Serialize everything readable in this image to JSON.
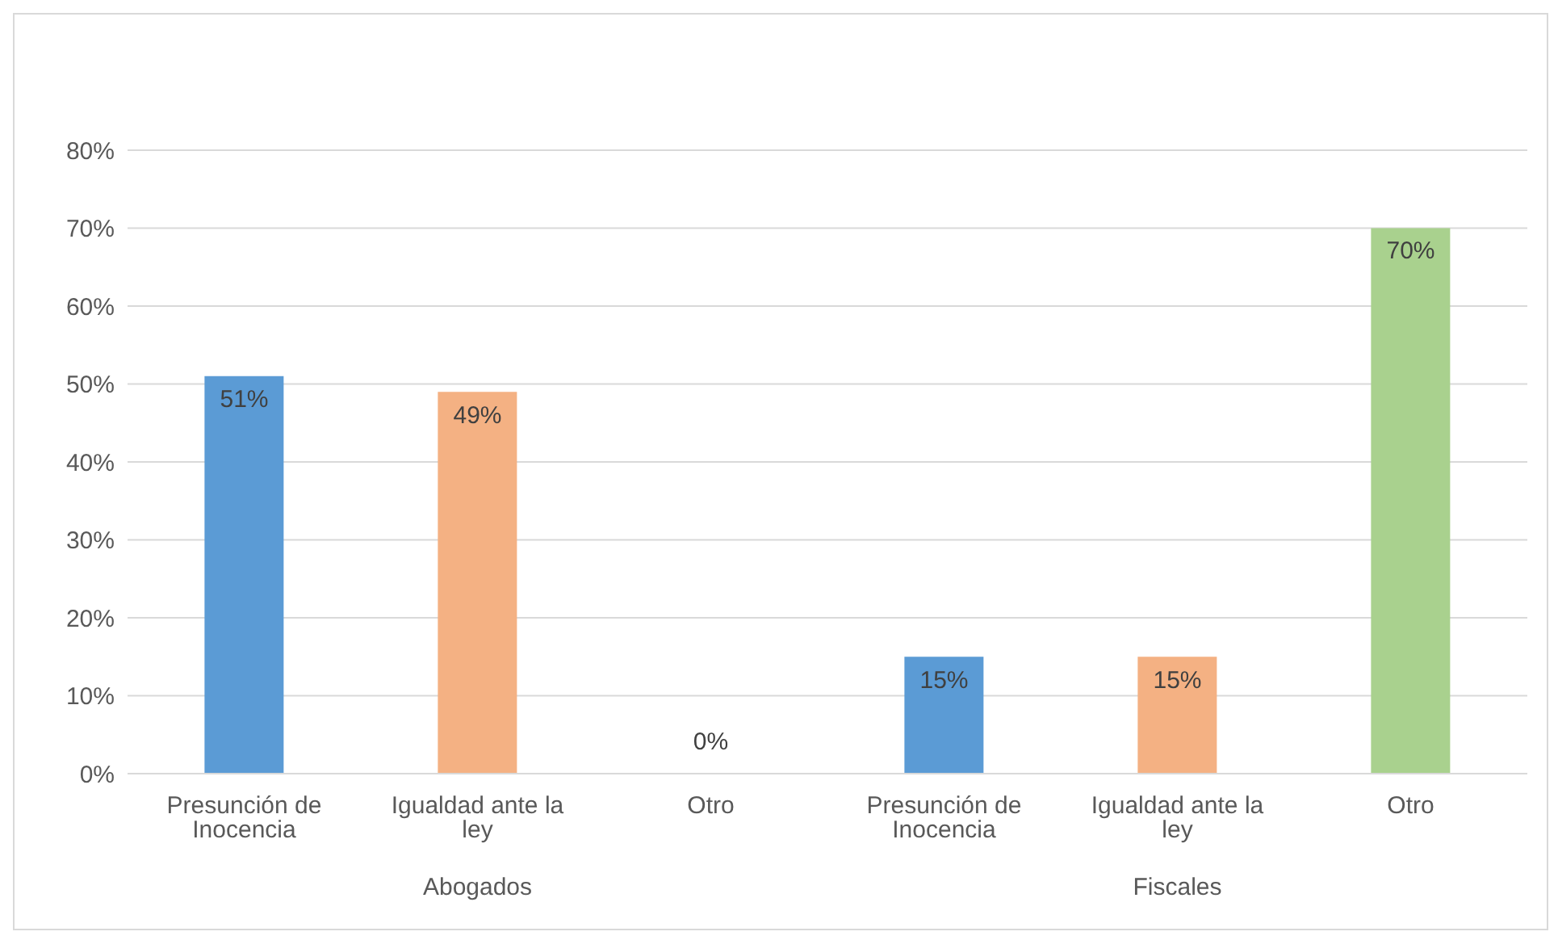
{
  "chart_data": {
    "type": "bar",
    "categories": [
      "Presunción de Inocencia",
      "Igualdad ante la ley",
      "Otro",
      "Presunción de Inocencia",
      "Igualdad ante la ley",
      "Otro"
    ],
    "values": [
      51,
      49,
      0,
      15,
      15,
      70
    ],
    "colors": [
      "#5b9bd5",
      "#f4b183",
      "#a9d18e",
      "#5b9bd5",
      "#f4b183",
      "#a9d18e"
    ],
    "value_labels": [
      "51%",
      "49%",
      "0%",
      "15%",
      "15%",
      "70%"
    ],
    "annotations": [
      "Abogados",
      "Fiscales"
    ],
    "ylim": [
      0,
      80
    ],
    "yticks": [
      {
        "value": 0,
        "label": "0%"
      },
      {
        "value": 10,
        "label": "10%"
      },
      {
        "value": 20,
        "label": "20%"
      },
      {
        "value": 30,
        "label": "30%"
      },
      {
        "value": 40,
        "label": "40%"
      },
      {
        "value": 50,
        "label": "50%"
      },
      {
        "value": 60,
        "label": "60%"
      },
      {
        "value": 70,
        "label": "70%"
      },
      {
        "value": 80,
        "label": "80%"
      }
    ],
    "grid": "y",
    "legend": false
  }
}
